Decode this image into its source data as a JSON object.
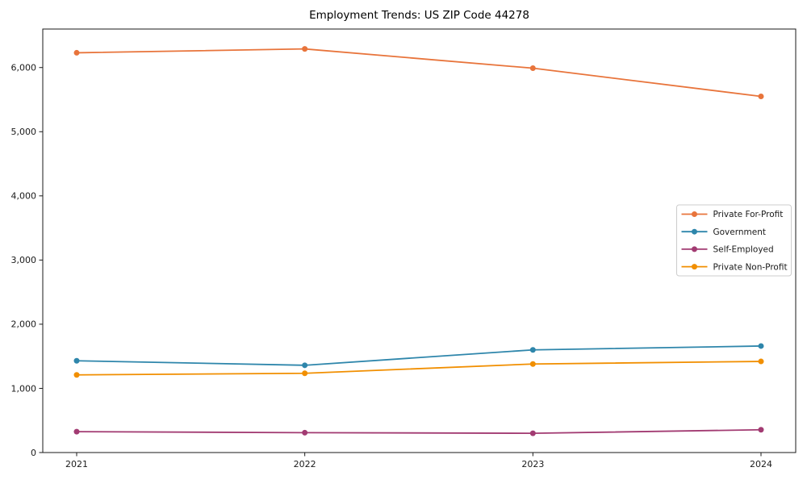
{
  "chart_data": {
    "type": "line",
    "title": "Employment Trends: US ZIP Code 44278",
    "x": [
      2021,
      2022,
      2023,
      2024
    ],
    "x_tick_labels": [
      "2021",
      "2022",
      "2023",
      "2024"
    ],
    "y_ticks": [
      0,
      1000,
      2000,
      3000,
      4000,
      5000,
      6000
    ],
    "y_tick_labels": [
      "0",
      "1,000",
      "2,000",
      "3,000",
      "4,000",
      "5,000",
      "6,000"
    ],
    "ylim": [
      0,
      6600
    ],
    "grid": false,
    "legend_position": "center-right",
    "series": [
      {
        "name": "Private For-Profit",
        "color": "#E8743B",
        "values": [
          6230,
          6290,
          5990,
          5550
        ]
      },
      {
        "name": "Government",
        "color": "#2E86AB",
        "values": [
          1430,
          1360,
          1600,
          1660
        ]
      },
      {
        "name": "Self-Employed",
        "color": "#A23B72",
        "values": [
          325,
          310,
          300,
          355
        ]
      },
      {
        "name": "Private Non-Profit",
        "color": "#F18F01",
        "values": [
          1210,
          1235,
          1380,
          1420
        ]
      }
    ],
    "axis_color": "#1a1a1a",
    "legend_border_color": "#cccccc",
    "legend_background": "#ffffff"
  }
}
